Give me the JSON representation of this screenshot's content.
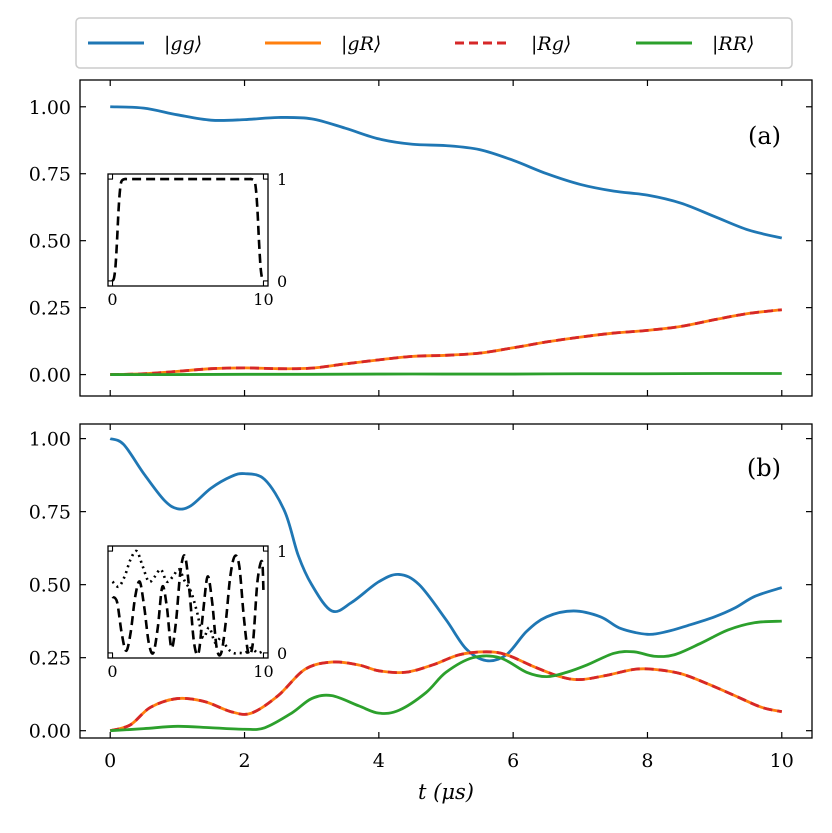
{
  "chart_data": [
    {
      "type": "line",
      "panel_label": "(a)",
      "xlabel": "",
      "ylabel": "",
      "xlim": [
        -0.45,
        10.45
      ],
      "ylim": [
        -0.08,
        1.1
      ],
      "xticks": [
        0,
        2,
        4,
        6,
        8,
        10
      ],
      "yticks": [
        0.0,
        0.25,
        0.5,
        0.75,
        1.0
      ],
      "ytick_labels": [
        "0.00",
        "0.25",
        "0.50",
        "0.75",
        "1.00"
      ],
      "series": [
        {
          "name": "|gg⟩",
          "color": "#1f77b4",
          "style": "solid",
          "x": [
            0,
            0.5,
            1,
            1.5,
            2,
            2.5,
            3,
            3.5,
            4,
            4.5,
            5,
            5.5,
            6,
            6.5,
            7,
            7.5,
            8,
            8.5,
            9,
            9.5,
            10
          ],
          "y": [
            1.0,
            0.995,
            0.97,
            0.95,
            0.952,
            0.96,
            0.955,
            0.92,
            0.88,
            0.86,
            0.855,
            0.84,
            0.8,
            0.75,
            0.71,
            0.685,
            0.67,
            0.64,
            0.59,
            0.54,
            0.51
          ]
        },
        {
          "name": "|gR⟩",
          "color": "#ff7f0e",
          "style": "solid",
          "x": [
            0,
            0.5,
            1,
            1.5,
            2,
            2.5,
            3,
            3.5,
            4,
            4.5,
            5,
            5.5,
            6,
            6.5,
            7,
            7.5,
            8,
            8.5,
            9,
            9.5,
            10
          ],
          "y": [
            0.0,
            0.003,
            0.012,
            0.022,
            0.025,
            0.022,
            0.024,
            0.04,
            0.055,
            0.068,
            0.072,
            0.08,
            0.1,
            0.122,
            0.14,
            0.155,
            0.165,
            0.18,
            0.205,
            0.228,
            0.242
          ]
        },
        {
          "name": "|Rg⟩",
          "color": "#d62728",
          "style": "dashed",
          "x": [
            0,
            0.5,
            1,
            1.5,
            2,
            2.5,
            3,
            3.5,
            4,
            4.5,
            5,
            5.5,
            6,
            6.5,
            7,
            7.5,
            8,
            8.5,
            9,
            9.5,
            10
          ],
          "y": [
            0.0,
            0.003,
            0.012,
            0.022,
            0.025,
            0.022,
            0.024,
            0.04,
            0.055,
            0.068,
            0.072,
            0.08,
            0.1,
            0.122,
            0.14,
            0.155,
            0.165,
            0.18,
            0.205,
            0.228,
            0.242
          ]
        },
        {
          "name": "|RR⟩",
          "color": "#2ca02c",
          "style": "solid",
          "x": [
            0,
            1,
            2,
            3,
            4,
            5,
            6,
            7,
            8,
            9,
            10
          ],
          "y": [
            0.0,
            0.0,
            0.001,
            0.001,
            0.002,
            0.002,
            0.002,
            0.003,
            0.003,
            0.004,
            0.004
          ]
        }
      ],
      "inset": {
        "xticks": [
          0,
          10
        ],
        "yticks": [
          0,
          1
        ],
        "xlim": [
          -0.3,
          10.3
        ],
        "ylim": [
          -0.05,
          1.05
        ],
        "series": [
          {
            "style": "dashed",
            "color": "#000000",
            "x": [
              0,
              0.1,
              0.2,
              0.3,
              0.4,
              0.5,
              0.6,
              0.8,
              1,
              2,
              5,
              8,
              9,
              9.2,
              9.4,
              9.5,
              9.6,
              9.7,
              9.8,
              9.9,
              10
            ],
            "y": [
              0.0,
              0.03,
              0.15,
              0.4,
              0.7,
              0.9,
              0.98,
              1.0,
              1.0,
              1.0,
              1.0,
              1.0,
              1.0,
              1.0,
              0.98,
              0.9,
              0.7,
              0.4,
              0.15,
              0.03,
              0.0
            ]
          }
        ]
      }
    },
    {
      "type": "line",
      "panel_label": "(b)",
      "xlabel": "t (μs)",
      "ylabel": "",
      "xlim": [
        -0.45,
        10.45
      ],
      "ylim": [
        -0.025,
        1.05
      ],
      "xticks": [
        0,
        2,
        4,
        6,
        8,
        10
      ],
      "xtick_labels": [
        "0",
        "2",
        "4",
        "6",
        "8",
        "10"
      ],
      "yticks": [
        0.0,
        0.25,
        0.5,
        0.75,
        1.0
      ],
      "ytick_labels": [
        "0.00",
        "0.25",
        "0.50",
        "0.75",
        "1.00"
      ],
      "series": [
        {
          "name": "|gg⟩",
          "color": "#1f77b4",
          "style": "solid",
          "x": [
            0,
            0.2,
            0.5,
            0.8,
            1,
            1.2,
            1.5,
            1.8,
            2,
            2.3,
            2.6,
            2.8,
            3,
            3.3,
            3.6,
            4,
            4.3,
            4.6,
            5,
            5.3,
            5.6,
            5.9,
            6.2,
            6.5,
            6.9,
            7.3,
            7.6,
            8,
            8.3,
            8.6,
            9,
            9.3,
            9.6,
            10
          ],
          "y": [
            1.0,
            0.98,
            0.88,
            0.79,
            0.76,
            0.77,
            0.83,
            0.87,
            0.88,
            0.86,
            0.75,
            0.6,
            0.5,
            0.41,
            0.44,
            0.51,
            0.535,
            0.5,
            0.38,
            0.28,
            0.24,
            0.26,
            0.34,
            0.39,
            0.41,
            0.39,
            0.35,
            0.33,
            0.34,
            0.36,
            0.39,
            0.42,
            0.46,
            0.49
          ]
        },
        {
          "name": "|gR⟩",
          "color": "#ff7f0e",
          "style": "solid",
          "x": [
            0,
            0.3,
            0.6,
            1,
            1.4,
            1.8,
            2.1,
            2.5,
            2.9,
            3.3,
            3.7,
            4,
            4.4,
            4.8,
            5.2,
            5.6,
            5.9,
            6.3,
            6.7,
            7,
            7.4,
            7.8,
            8.1,
            8.5,
            8.9,
            9.3,
            9.7,
            10
          ],
          "y": [
            0.0,
            0.02,
            0.08,
            0.11,
            0.1,
            0.065,
            0.06,
            0.12,
            0.21,
            0.235,
            0.225,
            0.205,
            0.2,
            0.225,
            0.26,
            0.27,
            0.26,
            0.22,
            0.185,
            0.175,
            0.19,
            0.21,
            0.21,
            0.195,
            0.16,
            0.12,
            0.08,
            0.065
          ]
        },
        {
          "name": "|Rg⟩",
          "color": "#d62728",
          "style": "dashed",
          "x": [
            0,
            0.3,
            0.6,
            1,
            1.4,
            1.8,
            2.1,
            2.5,
            2.9,
            3.3,
            3.7,
            4,
            4.4,
            4.8,
            5.2,
            5.6,
            5.9,
            6.3,
            6.7,
            7,
            7.4,
            7.8,
            8.1,
            8.5,
            8.9,
            9.3,
            9.7,
            10
          ],
          "y": [
            0.0,
            0.02,
            0.08,
            0.11,
            0.1,
            0.065,
            0.06,
            0.12,
            0.21,
            0.235,
            0.225,
            0.205,
            0.2,
            0.225,
            0.26,
            0.27,
            0.26,
            0.22,
            0.185,
            0.175,
            0.19,
            0.21,
            0.21,
            0.195,
            0.16,
            0.12,
            0.08,
            0.065
          ]
        },
        {
          "name": "|RR⟩",
          "color": "#2ca02c",
          "style": "solid",
          "x": [
            0,
            0.5,
            1,
            1.5,
            2,
            2.3,
            2.7,
            3,
            3.3,
            3.7,
            4,
            4.3,
            4.7,
            5,
            5.4,
            5.8,
            6.2,
            6.5,
            6.8,
            7.1,
            7.5,
            7.8,
            8.1,
            8.4,
            8.8,
            9.2,
            9.6,
            10
          ],
          "y": [
            0.0,
            0.007,
            0.015,
            0.01,
            0.005,
            0.01,
            0.06,
            0.11,
            0.12,
            0.085,
            0.06,
            0.07,
            0.13,
            0.2,
            0.25,
            0.25,
            0.2,
            0.185,
            0.2,
            0.225,
            0.265,
            0.27,
            0.255,
            0.26,
            0.3,
            0.345,
            0.37,
            0.375
          ]
        }
      ],
      "inset": {
        "xticks": [
          0,
          10
        ],
        "yticks": [
          0,
          1
        ],
        "xlim": [
          -0.3,
          10.3
        ],
        "ylim": [
          -0.05,
          1.05
        ],
        "series": [
          {
            "style": "dashed",
            "color": "#000000",
            "x": [
              0,
              0.3,
              0.6,
              0.9,
              1.2,
              1.5,
              1.8,
              2.1,
              2.4,
              2.7,
              3,
              3.3,
              3.6,
              3.9,
              4.2,
              4.5,
              4.8,
              5.1,
              5.4,
              5.7,
              6,
              6.3,
              6.6,
              6.9,
              7.2,
              7.5,
              7.8,
              8.1,
              8.4,
              8.7,
              9,
              9.3,
              9.6,
              9.9,
              10
            ],
            "y": [
              0.55,
              0.5,
              0.2,
              0.02,
              0.2,
              0.55,
              0.7,
              0.45,
              0.1,
              0.0,
              0.25,
              0.65,
              0.45,
              0.05,
              0.3,
              0.8,
              0.95,
              0.6,
              0.1,
              0.0,
              0.4,
              0.75,
              0.5,
              0.05,
              0.0,
              0.3,
              0.75,
              0.95,
              0.85,
              0.35,
              0.0,
              0.1,
              0.7,
              0.9,
              0.6
            ]
          },
          {
            "style": "dotted",
            "color": "#000000",
            "x": [
              0,
              0.4,
              0.8,
              1.2,
              1.6,
              2,
              2.4,
              2.8,
              3.2,
              3.6,
              4,
              4.4,
              4.8,
              5.2,
              5.6,
              6,
              6.4,
              6.8,
              7.2,
              7.6,
              8,
              8.4,
              8.8,
              9.2,
              9.6,
              10
            ],
            "y": [
              0.7,
              0.65,
              0.75,
              0.92,
              1.0,
              0.85,
              0.7,
              0.75,
              0.82,
              0.7,
              0.75,
              0.82,
              0.7,
              0.6,
              0.4,
              0.15,
              0.25,
              0.1,
              0.15,
              0.05,
              0.0,
              0.0,
              0.0,
              0.05,
              0.0,
              0.02
            ]
          }
        ]
      }
    }
  ],
  "legend": {
    "placement": "top",
    "entries": [
      {
        "label": "|gg⟩",
        "color": "#1f77b4",
        "style": "solid"
      },
      {
        "label": "|gR⟩",
        "color": "#ff7f0e",
        "style": "solid"
      },
      {
        "label": "|Rg⟩",
        "color": "#d62728",
        "style": "dashed"
      },
      {
        "label": "|RR⟩",
        "color": "#2ca02c",
        "style": "solid"
      }
    ]
  }
}
